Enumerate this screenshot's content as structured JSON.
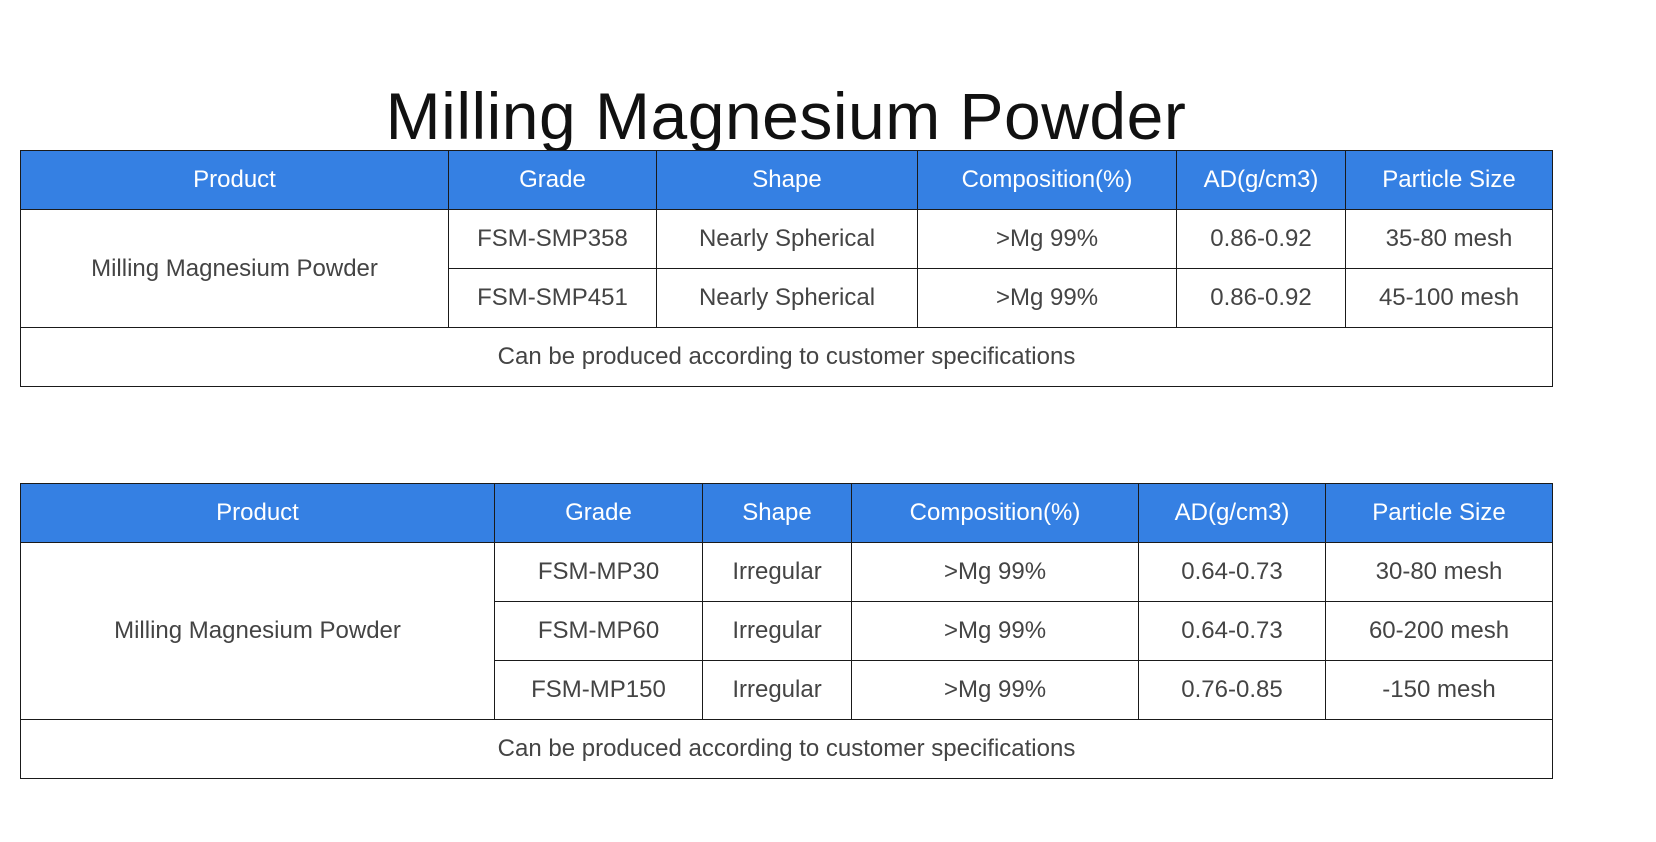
{
  "title": "Milling Magnesium Powder",
  "accent_color": "#3580e3",
  "tables": [
    {
      "headers": [
        "Product",
        "Grade",
        "Shape",
        "Composition(%)",
        "AD(g/cm3)",
        "Particle Size"
      ],
      "product": "Milling Magnesium Powder",
      "rows": [
        [
          "FSM-SMP358",
          "Nearly Spherical",
          ">Mg 99%",
          "0.86-0.92",
          "35-80 mesh"
        ],
        [
          "FSM-SMP451",
          "Nearly Spherical",
          ">Mg 99%",
          "0.86-0.92",
          "45-100 mesh"
        ]
      ],
      "footer": "Can be produced according to customer specifications"
    },
    {
      "headers": [
        "Product",
        "Grade",
        "Shape",
        "Composition(%)",
        "AD(g/cm3)",
        "Particle Size"
      ],
      "product": "Milling Magnesium Powder",
      "rows": [
        [
          "FSM-MP30",
          "Irregular",
          ">Mg 99%",
          "0.64-0.73",
          "30-80 mesh"
        ],
        [
          "FSM-MP60",
          "Irregular",
          ">Mg 99%",
          "0.64-0.73",
          "60-200 mesh"
        ],
        [
          "FSM-MP150",
          "Irregular",
          ">Mg 99%",
          "0.76-0.85",
          "-150 mesh"
        ]
      ],
      "footer": "Can be produced according to customer specifications"
    }
  ]
}
